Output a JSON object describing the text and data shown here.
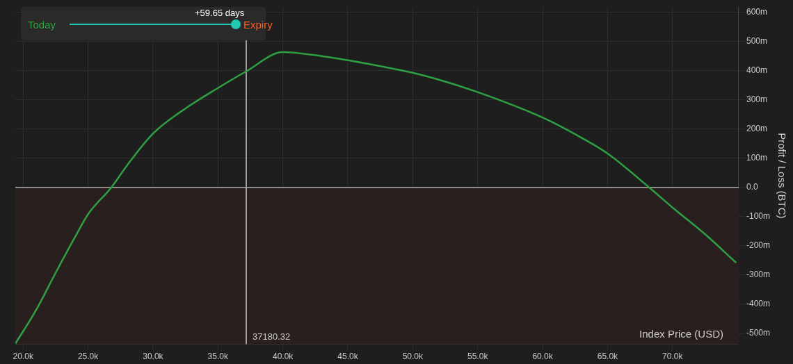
{
  "chart_data": {
    "type": "line",
    "xlabel": "Index Price (USD)",
    "ylabel": "Profit / Loss (BTC)",
    "annotations": [
      "+59.65 days",
      "Today",
      "Expiry"
    ],
    "series": [
      {
        "color": "#2ea043",
        "x": [
          19400,
          21000,
          22500,
          24000,
          25000,
          26800,
          28000,
          30000,
          32500,
          35000,
          37180,
          40000,
          42500,
          45000,
          47500,
          50000,
          52500,
          55000,
          57500,
          60000,
          62500,
          65000,
          68200,
          70000,
          72500,
          74900
        ],
        "values": [
          -535,
          -420,
          -293,
          -170,
          -92,
          0,
          75,
          184,
          270,
          340,
          397,
          463,
          452,
          435,
          415,
          392,
          362,
          326,
          285,
          239,
          182,
          116,
          0,
          -69,
          -160,
          -258
        ]
      }
    ],
    "xlim": [
      19400,
      75100
    ],
    "ylim": [
      -537,
      617
    ],
    "xticks": [
      {
        "value": 20000,
        "label": "20.0k"
      },
      {
        "value": 25000,
        "label": "25.0k"
      },
      {
        "value": 30000,
        "label": "30.0k"
      },
      {
        "value": 35000,
        "label": "35.0k"
      },
      {
        "value": 40000,
        "label": "40.0k"
      },
      {
        "value": 45000,
        "label": "45.0k"
      },
      {
        "value": 50000,
        "label": "50.0k"
      },
      {
        "value": 55000,
        "label": "55.0k"
      },
      {
        "value": 60000,
        "label": "60.0k"
      },
      {
        "value": 65000,
        "label": "65.0k"
      },
      {
        "value": 70000,
        "label": "70.0k"
      }
    ],
    "yticks": [
      {
        "value": -500,
        "label": "-500m"
      },
      {
        "value": -400,
        "label": "-400m"
      },
      {
        "value": -300,
        "label": "-300m"
      },
      {
        "value": -200,
        "label": "-200m"
      },
      {
        "value": -100,
        "label": "-100m"
      },
      {
        "value": 0,
        "label": "0.0"
      },
      {
        "value": 100,
        "label": "100m"
      },
      {
        "value": 200,
        "label": "200m"
      },
      {
        "value": 300,
        "label": "300m"
      },
      {
        "value": 400,
        "label": "400m"
      },
      {
        "value": 500,
        "label": "500m"
      },
      {
        "value": 600,
        "label": "600m"
      }
    ],
    "ref_lines": [
      {
        "axis": "x",
        "value": 37180.32,
        "label": "37180.32",
        "color": "#cccccc"
      },
      {
        "axis": "y",
        "value": 0,
        "color": "#aaaaaa"
      }
    ],
    "bands": [
      {
        "axis": "y",
        "from": -537,
        "to": 0,
        "color": "#2a1f1f"
      }
    ],
    "grid": true,
    "legend": false,
    "marker": "none",
    "line_style": "solid"
  }
}
